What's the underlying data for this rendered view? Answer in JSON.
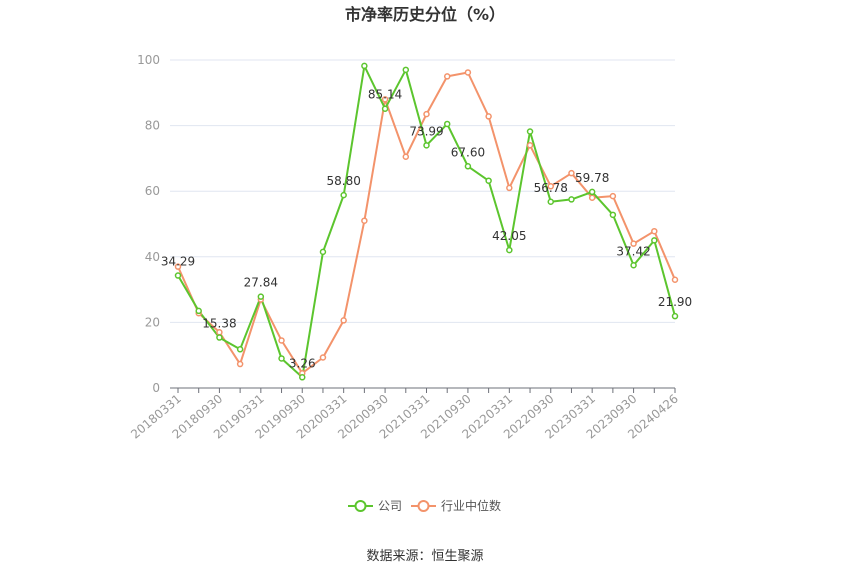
{
  "chart_data": {
    "type": "line",
    "title": "市净率历史分位（%）",
    "source": "数据来源：恒生聚源",
    "ylim": [
      0,
      100
    ],
    "yticks": [
      0,
      20,
      40,
      60,
      80,
      100
    ],
    "xtick_labels": [
      "20180331",
      "20180930",
      "20190331",
      "20190930",
      "20200331",
      "20200930",
      "20210331",
      "20210930",
      "20220331",
      "20220930",
      "20230331",
      "20230930",
      "20240426"
    ],
    "grid": true,
    "legend": "bottom-center",
    "series": [
      {
        "name": "公司",
        "color": "#5cc52e",
        "values": [
          34.29,
          23.5,
          15.38,
          11.8,
          27.84,
          9.0,
          3.26,
          41.5,
          58.8,
          98.2,
          85.14,
          97.0,
          73.99,
          80.5,
          67.6,
          63.2,
          42.05,
          78.2,
          56.78,
          57.5,
          59.78,
          52.8,
          37.42,
          45.0,
          21.9
        ]
      },
      {
        "name": "行业中位数",
        "color": "#f3936b",
        "values": [
          37.0,
          22.8,
          17.0,
          7.3,
          27.0,
          14.5,
          4.5,
          9.3,
          20.6,
          51.0,
          88.0,
          70.5,
          83.5,
          95.0,
          96.2,
          82.8,
          61.0,
          74.0,
          61.5,
          65.5,
          58.0,
          58.5,
          44.0,
          47.8,
          33.0
        ]
      }
    ],
    "data_labels": [
      {
        "index": 0,
        "text": "34.29"
      },
      {
        "index": 2,
        "text": "15.38"
      },
      {
        "index": 4,
        "text": "27.84"
      },
      {
        "index": 6,
        "text": "3.26"
      },
      {
        "index": 8,
        "text": "58.80"
      },
      {
        "index": 10,
        "text": "85.14"
      },
      {
        "index": 12,
        "text": "73.99"
      },
      {
        "index": 14,
        "text": "67.60"
      },
      {
        "index": 16,
        "text": "42.05"
      },
      {
        "index": 18,
        "text": "56.78"
      },
      {
        "index": 20,
        "text": "59.78"
      },
      {
        "index": 22,
        "text": "37.42"
      },
      {
        "index": 24,
        "text": "21.90"
      }
    ]
  }
}
